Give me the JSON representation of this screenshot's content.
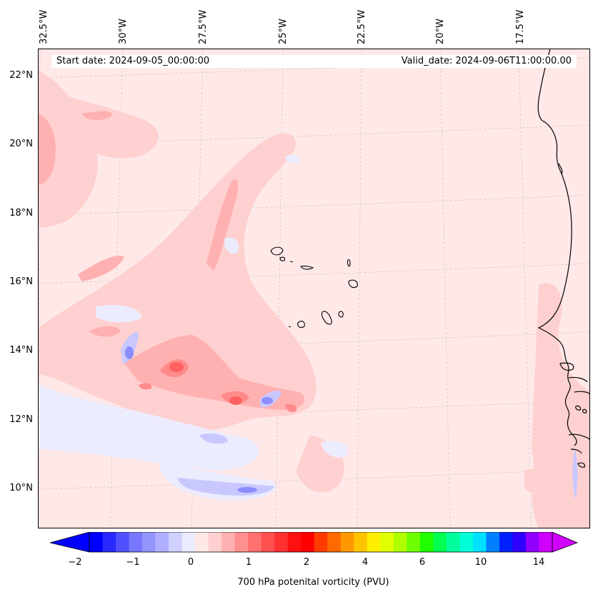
{
  "header": {
    "start_date": "Start date: 2024-09-05_00:00:00",
    "valid_date": "Valid_date: 2024-09-06T11:00:00.00"
  },
  "axes": {
    "longitude_labels": [
      "32.5°W",
      "30°W",
      "27.5°W",
      "25°W",
      "22.5°W",
      "20°W",
      "17.5°W"
    ],
    "latitude_labels": [
      "22°N",
      "20°N",
      "18°N",
      "16°N",
      "14°N",
      "12°N",
      "10°N"
    ]
  },
  "colorbar": {
    "title": "700 hPa potenital vorticity (PVU)",
    "tick_labels": [
      "−2",
      "−1",
      "0",
      "1",
      "2",
      "4",
      "6",
      "10",
      "14"
    ],
    "colors": [
      "#0000ff",
      "#2828ff",
      "#5050ff",
      "#7878ff",
      "#9494ff",
      "#b0b0ff",
      "#d0d0ff",
      "#ececff",
      "#ffe8e8",
      "#ffd0d0",
      "#ffb0b0",
      "#ff9090",
      "#ff7070",
      "#ff5050",
      "#ff3030",
      "#ff1010",
      "#ff0000",
      "#ff3c00",
      "#ff6a00",
      "#ff9800",
      "#ffc400",
      "#ffee00",
      "#e0ff00",
      "#b0ff00",
      "#70ff00",
      "#20ff00",
      "#00ff50",
      "#00ff9c",
      "#00ffd8",
      "#00e0ff",
      "#0080ff",
      "#0020ff",
      "#3000ff",
      "#9000ff",
      "#d000ff"
    ]
  },
  "map_legend_colors": {
    "background": "#ffe8e8",
    "light_red": "#ffd0d0",
    "mid_red": "#ffb0b0",
    "strong_red": "#ff8080",
    "light_blue": "#ececff",
    "mid_blue": "#c8c8ff",
    "strong_blue": "#8c8cff",
    "coast": "#000000"
  }
}
